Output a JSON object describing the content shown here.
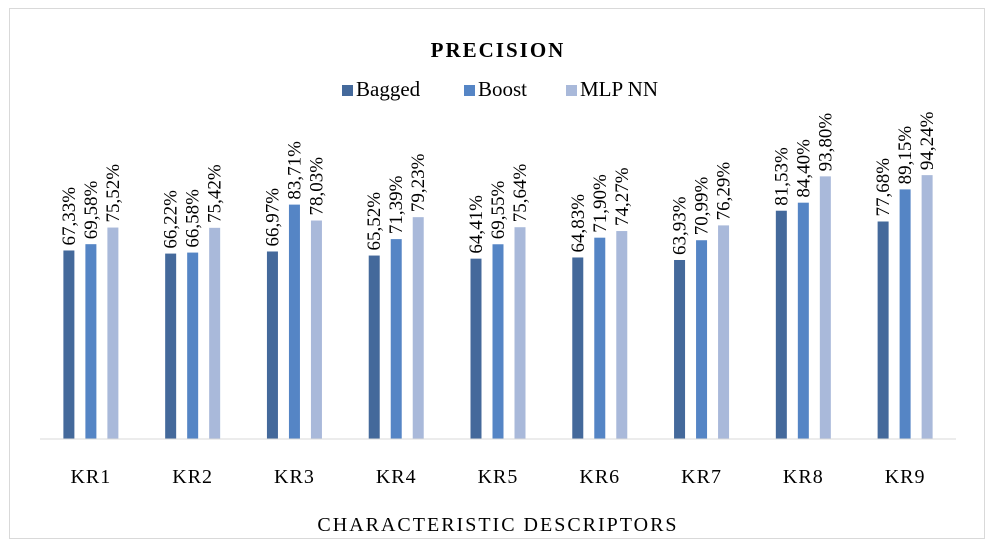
{
  "chart_data": {
    "type": "bar",
    "title": "PRECISION",
    "xlabel": "CHARACTERISTIC DESCRIPTORS",
    "ylabel": "",
    "ylim": [
      0,
      100
    ],
    "grid": false,
    "legend_position": "top",
    "categories": [
      "KR1",
      "KR2",
      "KR3",
      "KR4",
      "KR5",
      "KR6",
      "KR7",
      "KR8",
      "KR9"
    ],
    "series": [
      {
        "name": "Bagged",
        "color": "#44699b",
        "values": [
          67.33,
          66.22,
          66.97,
          65.52,
          64.41,
          64.83,
          63.93,
          81.53,
          77.68
        ],
        "labels": [
          "67,33%",
          "66,22%",
          "66,97%",
          "65,52%",
          "64,41%",
          "64,83%",
          "63,93%",
          "81,53%",
          "77,68%"
        ]
      },
      {
        "name": "Boost",
        "color": "#5585c5",
        "values": [
          69.58,
          66.58,
          83.71,
          71.39,
          69.55,
          71.9,
          70.99,
          84.4,
          89.15
        ],
        "labels": [
          "69,58%",
          "66,58%",
          "83,71%",
          "71,39%",
          "69,55%",
          "71,90%",
          "70,99%",
          "84,40%",
          "89,15%"
        ]
      },
      {
        "name": "MLP NN",
        "color": "#a9b9da",
        "values": [
          75.52,
          75.42,
          78.03,
          79.23,
          75.64,
          74.27,
          76.29,
          93.8,
          94.24
        ],
        "labels": [
          "75,52%",
          "75,42%",
          "78,03%",
          "79,23%",
          "75,64%",
          "74,27%",
          "76,29%",
          "93,80%",
          "94,24%"
        ]
      }
    ]
  }
}
